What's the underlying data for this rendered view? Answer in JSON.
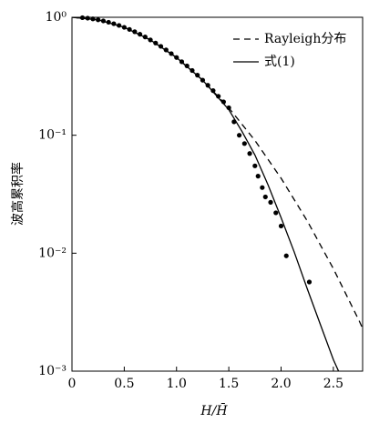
{
  "chart_data": {
    "type": "line",
    "xlabel": "H/H̄",
    "ylabel": "波高累积率",
    "xlim": [
      0,
      2.78
    ],
    "ylim": [
      0.001,
      1
    ],
    "yscale": "log",
    "xticks": [
      0,
      0.5,
      {
        "value": 1,
        "label": "1.0"
      },
      1.5,
      {
        "value": 2,
        "label": "2.0"
      },
      2.5
    ],
    "yticks": [
      {
        "value": 1,
        "label": "10⁰"
      },
      {
        "value": 0.1,
        "label": "10⁻¹"
      },
      {
        "value": 0.01,
        "label": "10⁻²"
      },
      {
        "value": 0.001,
        "label": "10⁻³"
      }
    ],
    "legend": "top-right",
    "series": [
      {
        "name": "Rayleigh分布",
        "style": "dashed",
        "color": "#000000",
        "x": [
          0,
          0.25,
          0.5,
          0.75,
          1.0,
          1.25,
          1.5,
          1.75,
          2.0,
          2.25,
          2.5,
          2.75,
          2.78
        ],
        "values": [
          1,
          0.952,
          0.822,
          0.643,
          0.456,
          0.293,
          0.171,
          0.0903,
          0.0432,
          0.0188,
          0.00738,
          0.00263,
          0.0023
        ]
      },
      {
        "name": "式(1)",
        "style": "solid",
        "color": "#000000",
        "x": [
          0,
          0.25,
          0.5,
          0.75,
          1.0,
          1.25,
          1.5,
          1.625,
          1.75,
          1.875,
          2.0,
          2.125,
          2.25,
          2.375,
          2.5,
          2.55
        ],
        "values": [
          1,
          0.952,
          0.822,
          0.643,
          0.456,
          0.293,
          0.165,
          0.108,
          0.068,
          0.038,
          0.02,
          0.0103,
          0.005,
          0.0025,
          0.00125,
          0.001
        ]
      },
      {
        "style": "markers",
        "color": "#000000",
        "x": [
          0.1,
          0.15,
          0.2,
          0.25,
          0.3,
          0.35,
          0.4,
          0.45,
          0.5,
          0.55,
          0.6,
          0.65,
          0.7,
          0.75,
          0.8,
          0.85,
          0.9,
          0.95,
          1.0,
          1.05,
          1.1,
          1.15,
          1.2,
          1.25,
          1.3,
          1.35,
          1.4,
          1.45,
          1.5,
          1.55,
          1.6,
          1.65,
          1.7,
          1.75,
          1.78,
          1.82,
          1.85,
          1.9,
          1.95,
          2.0,
          2.05,
          2.27
        ],
        "values": [
          0.992,
          0.983,
          0.969,
          0.952,
          0.932,
          0.908,
          0.882,
          0.853,
          0.822,
          0.789,
          0.754,
          0.718,
          0.681,
          0.643,
          0.605,
          0.567,
          0.529,
          0.492,
          0.456,
          0.42,
          0.387,
          0.354,
          0.323,
          0.293,
          0.265,
          0.239,
          0.214,
          0.192,
          0.171,
          0.13,
          0.1,
          0.085,
          0.07,
          0.055,
          0.045,
          0.036,
          0.03,
          0.027,
          0.022,
          0.017,
          0.0095,
          0.0057
        ]
      }
    ]
  }
}
